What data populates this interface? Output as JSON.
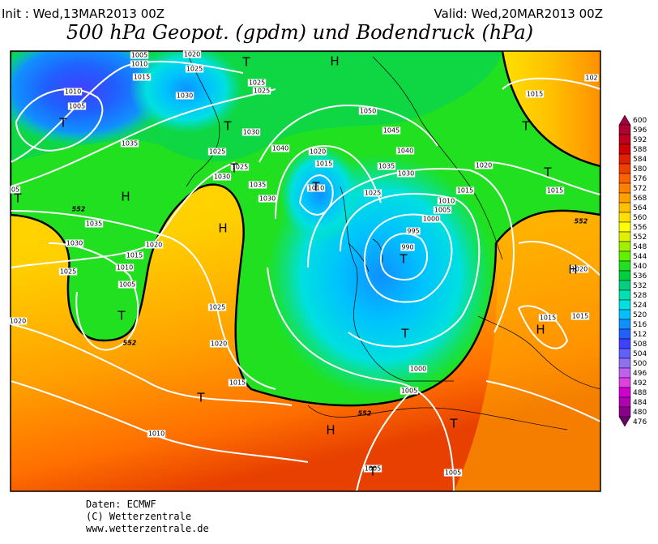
{
  "header": {
    "init": "Init : Wed,13MAR2013 00Z",
    "valid": "Valid: Wed,20MAR2013 00Z",
    "title": "500 hPa Geopot. (gpdm) und Bodendruck (hPa)"
  },
  "map": {
    "pressure_labels": [
      "1005",
      "1010",
      "1020",
      "1015",
      "1025",
      "1010",
      "1005",
      "1030",
      "1035",
      "1025",
      "1030",
      "1025",
      "1025",
      "1040",
      "1020",
      "1015",
      "1050",
      "1045",
      "1040",
      "1035",
      "1030",
      "1025",
      "1010",
      "1030",
      "1025",
      "1035",
      "1030",
      "1020",
      "1015",
      "1010",
      "1005",
      "1000",
      "995",
      "990",
      "1015",
      "1015",
      "1020",
      "1015",
      "1015",
      "1035",
      "1030",
      "1020",
      "1015",
      "1010",
      "1005",
      "1025",
      "1025",
      "1020",
      "1020",
      "1015",
      "1010",
      "1005",
      "1000",
      "1005",
      "1005",
      "05",
      "102"
    ],
    "centers": [
      "T",
      "H",
      "T",
      "T",
      "H",
      "T",
      "H",
      "T",
      "T",
      "T",
      "H",
      "T",
      "T",
      "T",
      "H",
      "T",
      "H",
      "T",
      "T",
      "T"
    ],
    "contour_labels": [
      "552",
      "552",
      "552",
      "552"
    ]
  },
  "colorbar": {
    "levels": [
      600,
      596,
      592,
      588,
      584,
      580,
      576,
      572,
      568,
      564,
      560,
      556,
      552,
      548,
      544,
      540,
      536,
      532,
      528,
      524,
      520,
      516,
      512,
      508,
      504,
      500,
      496,
      492,
      488,
      484,
      480,
      476
    ]
  },
  "footer": {
    "lines": [
      "Daten: ECMWF",
      "(C) Wetterzentrale",
      "www.wetterzentrale.de"
    ]
  }
}
